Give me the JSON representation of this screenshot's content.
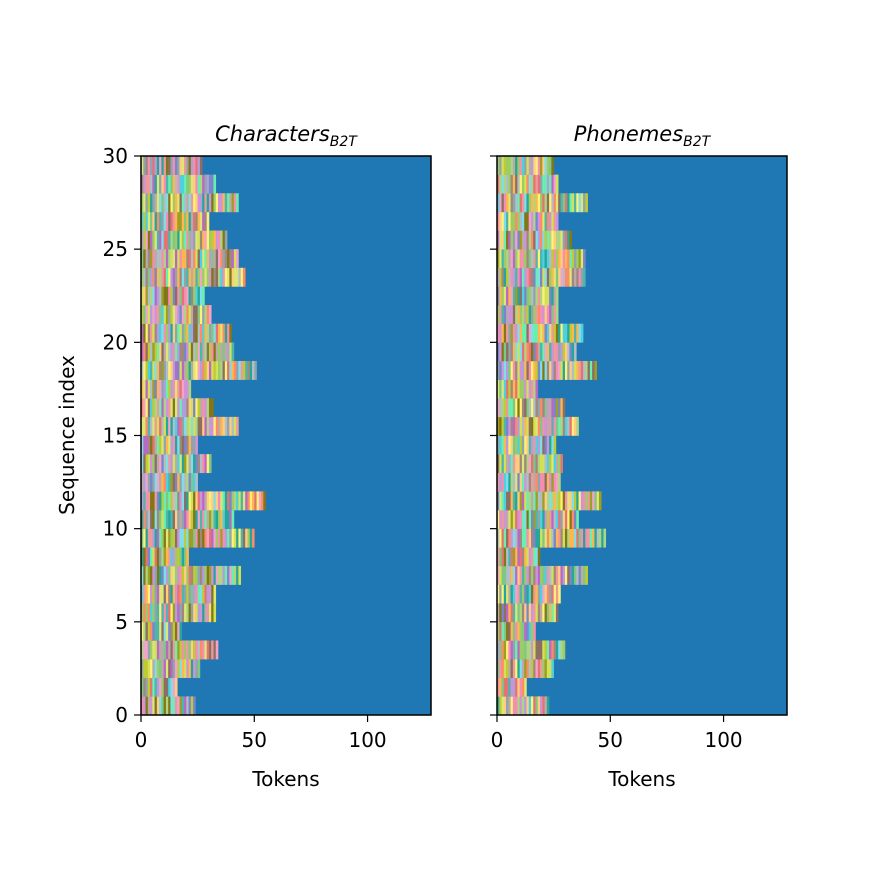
{
  "chart_data": [
    {
      "type": "heatmap",
      "title": "Characters",
      "title_subscript": "B2T",
      "xlabel": "Tokens",
      "ylabel": "Sequence index",
      "xlim": [
        0,
        128
      ],
      "ylim": [
        0,
        30
      ],
      "xticks": [
        0,
        50,
        100
      ],
      "yticks": [
        0,
        5,
        10,
        15,
        20,
        25,
        30
      ],
      "padding_color": "#1f77b4",
      "sequence_lengths": [
        24,
        16,
        26,
        34,
        18,
        33,
        33,
        44,
        21,
        50,
        41,
        55,
        25,
        31,
        25,
        43,
        32,
        22,
        51,
        41,
        40,
        31,
        28,
        46,
        43,
        38,
        30,
        43,
        33,
        27
      ]
    },
    {
      "type": "heatmap",
      "title": "Phonemes",
      "title_subscript": "B2T",
      "xlabel": "Tokens",
      "ylabel": "",
      "xlim": [
        0,
        128
      ],
      "ylim": [
        0,
        30
      ],
      "xticks": [
        0,
        50,
        100
      ],
      "yticks": [
        0,
        5,
        10,
        15,
        20,
        25,
        30
      ],
      "padding_color": "#1f77b4",
      "sequence_lengths": [
        23,
        13,
        25,
        30,
        17,
        27,
        28,
        40,
        19,
        48,
        36,
        46,
        28,
        29,
        26,
        36,
        30,
        18,
        44,
        35,
        38,
        27,
        27,
        39,
        39,
        33,
        27,
        40,
        27,
        25
      ]
    }
  ]
}
